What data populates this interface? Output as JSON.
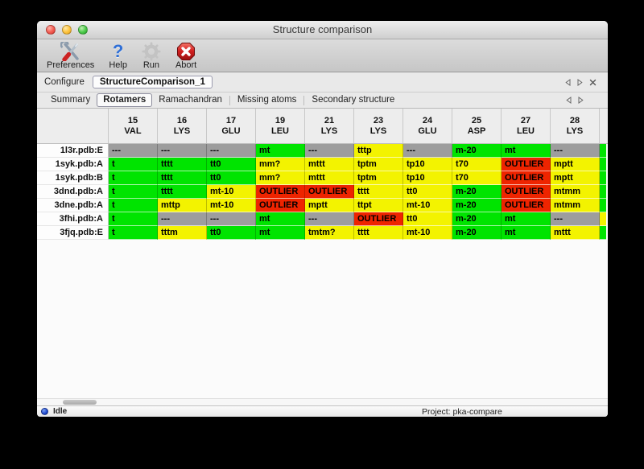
{
  "window": {
    "title": "Structure comparison"
  },
  "toolbar": {
    "items": [
      {
        "label": "Preferences",
        "icon": "tools-icon"
      },
      {
        "label": "Help",
        "icon": "question-icon",
        "glyph": "?"
      },
      {
        "label": "Run",
        "icon": "gear-icon"
      },
      {
        "label": "Abort",
        "icon": "stop-icon"
      }
    ]
  },
  "configure": {
    "label": "Configure",
    "value": "StructureComparison_1"
  },
  "tab_strip": {
    "tabs": [
      {
        "label": "Summary",
        "selected": false
      },
      {
        "label": "Rotamers",
        "selected": true
      },
      {
        "label": "Ramachandran",
        "selected": false
      },
      {
        "label": "Missing atoms",
        "selected": false
      },
      {
        "label": "Secondary structure",
        "selected": false
      }
    ]
  },
  "colors": {
    "green": "#00e400",
    "yellow": "#f3f300",
    "red": "#ee2400",
    "gray": "#9d9d9d"
  },
  "table": {
    "columns": [
      {
        "num": "15",
        "res": "VAL"
      },
      {
        "num": "16",
        "res": "LYS"
      },
      {
        "num": "17",
        "res": "GLU"
      },
      {
        "num": "19",
        "res": "LEU"
      },
      {
        "num": "21",
        "res": "LYS"
      },
      {
        "num": "23",
        "res": "LYS"
      },
      {
        "num": "24",
        "res": "GLU"
      },
      {
        "num": "25",
        "res": "ASP"
      },
      {
        "num": "27",
        "res": "LEU"
      },
      {
        "num": "28",
        "res": "LYS"
      }
    ],
    "rows": [
      {
        "label": "1l3r.pdb:E",
        "cells": [
          {
            "text": "---",
            "status": "gray"
          },
          {
            "text": "---",
            "status": "gray"
          },
          {
            "text": "---",
            "status": "gray"
          },
          {
            "text": "mt",
            "status": "green"
          },
          {
            "text": "---",
            "status": "gray"
          },
          {
            "text": "tttp",
            "status": "yellow"
          },
          {
            "text": "---",
            "status": "gray"
          },
          {
            "text": "m-20",
            "status": "green"
          },
          {
            "text": "mt",
            "status": "green"
          },
          {
            "text": "---",
            "status": "gray"
          }
        ]
      },
      {
        "label": "1syk.pdb:A",
        "cells": [
          {
            "text": "t",
            "status": "green"
          },
          {
            "text": "tttt",
            "status": "green"
          },
          {
            "text": "tt0",
            "status": "green"
          },
          {
            "text": "mm?",
            "status": "yellow"
          },
          {
            "text": "mttt",
            "status": "yellow"
          },
          {
            "text": "tptm",
            "status": "yellow"
          },
          {
            "text": "tp10",
            "status": "yellow"
          },
          {
            "text": "t70",
            "status": "yellow"
          },
          {
            "text": "OUTLIER",
            "status": "red"
          },
          {
            "text": "mptt",
            "status": "yellow"
          }
        ]
      },
      {
        "label": "1syk.pdb:B",
        "cells": [
          {
            "text": "t",
            "status": "green"
          },
          {
            "text": "tttt",
            "status": "green"
          },
          {
            "text": "tt0",
            "status": "green"
          },
          {
            "text": "mm?",
            "status": "yellow"
          },
          {
            "text": "mttt",
            "status": "yellow"
          },
          {
            "text": "tptm",
            "status": "yellow"
          },
          {
            "text": "tp10",
            "status": "yellow"
          },
          {
            "text": "t70",
            "status": "yellow"
          },
          {
            "text": "OUTLIER",
            "status": "red"
          },
          {
            "text": "mptt",
            "status": "yellow"
          }
        ]
      },
      {
        "label": "3dnd.pdb:A",
        "cells": [
          {
            "text": "t",
            "status": "green"
          },
          {
            "text": "tttt",
            "status": "green"
          },
          {
            "text": "mt-10",
            "status": "yellow"
          },
          {
            "text": "OUTLIER",
            "status": "red"
          },
          {
            "text": "OUTLIER",
            "status": "red"
          },
          {
            "text": "tttt",
            "status": "yellow"
          },
          {
            "text": "tt0",
            "status": "yellow"
          },
          {
            "text": "m-20",
            "status": "green"
          },
          {
            "text": "OUTLIER",
            "status": "red"
          },
          {
            "text": "mtmm",
            "status": "yellow"
          }
        ]
      },
      {
        "label": "3dne.pdb:A",
        "cells": [
          {
            "text": "t",
            "status": "green"
          },
          {
            "text": "mttp",
            "status": "yellow"
          },
          {
            "text": "mt-10",
            "status": "yellow"
          },
          {
            "text": "OUTLIER",
            "status": "red"
          },
          {
            "text": "mptt",
            "status": "yellow"
          },
          {
            "text": "ttpt",
            "status": "yellow"
          },
          {
            "text": "mt-10",
            "status": "yellow"
          },
          {
            "text": "m-20",
            "status": "green"
          },
          {
            "text": "OUTLIER",
            "status": "red"
          },
          {
            "text": "mtmm",
            "status": "yellow"
          }
        ]
      },
      {
        "label": "3fhi.pdb:A",
        "cells": [
          {
            "text": "t",
            "status": "green"
          },
          {
            "text": "---",
            "status": "gray"
          },
          {
            "text": "---",
            "status": "gray"
          },
          {
            "text": "mt",
            "status": "green"
          },
          {
            "text": "---",
            "status": "gray"
          },
          {
            "text": "OUTLIER",
            "status": "red"
          },
          {
            "text": "tt0",
            "status": "yellow"
          },
          {
            "text": "m-20",
            "status": "green"
          },
          {
            "text": "mt",
            "status": "green"
          },
          {
            "text": "---",
            "status": "gray"
          }
        ]
      },
      {
        "label": "3fjq.pdb:E",
        "cells": [
          {
            "text": "t",
            "status": "green"
          },
          {
            "text": "tttm",
            "status": "yellow"
          },
          {
            "text": "tt0",
            "status": "green"
          },
          {
            "text": "mt",
            "status": "green"
          },
          {
            "text": "tmtm?",
            "status": "yellow"
          },
          {
            "text": "tttt",
            "status": "yellow"
          },
          {
            "text": "mt-10",
            "status": "yellow"
          },
          {
            "text": "m-20",
            "status": "green"
          },
          {
            "text": "mt",
            "status": "green"
          },
          {
            "text": "mttt",
            "status": "yellow"
          }
        ]
      },
      {
        "label": "",
        "partial_next_column": [
          "green",
          "green",
          "green",
          "green",
          "green",
          "yellow",
          "green"
        ]
      }
    ]
  },
  "statusbar": {
    "status": "Idle",
    "project": "Project: pka-compare"
  }
}
